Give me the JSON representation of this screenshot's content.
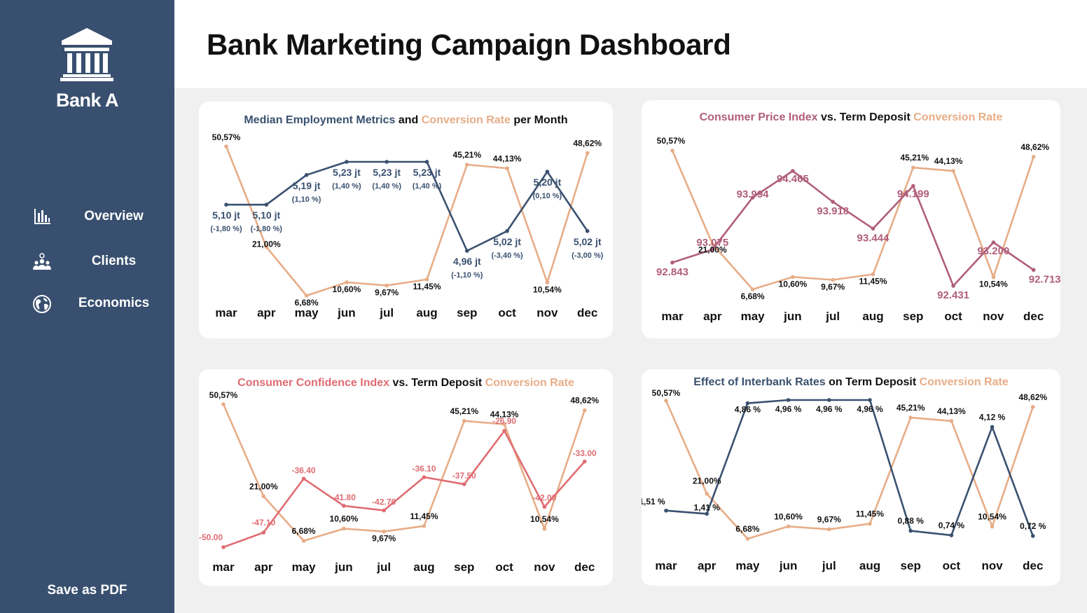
{
  "sidebar": {
    "bank_name": "Bank A",
    "logo_icon": "bank-building-icon",
    "nav": [
      {
        "label": "Overview",
        "icon": "bar-chart-icon"
      },
      {
        "label": "Clients",
        "icon": "people-icon"
      },
      {
        "label": "Economics",
        "icon": "globe-icon"
      }
    ],
    "save_label": "Save as PDF"
  },
  "header": {
    "title": "Bank Marketing Campaign Dashboard"
  },
  "colors": {
    "sidebar": "#384f6f",
    "navy": "#3a5170",
    "conversion": "#e7ad87",
    "cpi": "#b05e79",
    "cci": "#df6c72"
  },
  "chart_data": [
    {
      "type": "line",
      "title_parts": [
        {
          "text": "Median Employment Metrics",
          "color": "#3a5170"
        },
        {
          "text": " and ",
          "color": "#111111"
        },
        {
          "text": "Conversion Rate",
          "color": "#e7ad87"
        },
        {
          "text": " per Month",
          "color": "#111111"
        }
      ],
      "categories": [
        "mar",
        "apr",
        "may",
        "jun",
        "jul",
        "aug",
        "sep",
        "oct",
        "nov",
        "dec"
      ],
      "series": [
        {
          "role": "primary",
          "color": "#3a5170",
          "values": [
            5.1,
            5.1,
            5.19,
            5.23,
            5.23,
            5.23,
            4.96,
            5.02,
            5.2,
            5.02
          ],
          "labels": [
            "5,10 jt",
            "5,10 jt",
            "5,19 jt",
            "5,23 jt",
            "5,23 jt",
            "5,23 jt",
            "4,96 jt",
            "5,02 jt",
            "5,20 jt",
            "5,02 jt"
          ],
          "sublabels": [
            "(-1,80 %)",
            "(-1,80 %)",
            "(1,10 %)",
            "(1,40 %)",
            "(1,40 %)",
            "(1,40 %)",
            "(-1,10 %)",
            "(-3,40 %)",
            "(0,10 %)",
            "(-3,00 %)"
          ],
          "label_pos": [
            "below",
            "below",
            "above",
            "above",
            "above",
            "above",
            "below",
            "above",
            "above",
            "below"
          ]
        },
        {
          "role": "conversion",
          "color": "#e7ad87",
          "values": [
            50.57,
            21.0,
            6.68,
            10.6,
            9.67,
            11.45,
            45.21,
            44.13,
            10.54,
            48.62
          ],
          "labels": [
            "50,57%",
            "21,00%",
            "6,68%",
            "10,60%",
            "9,67%",
            "11,45%",
            "45,21%",
            "44,13%",
            "10,54%",
            "48,62%"
          ]
        }
      ]
    },
    {
      "type": "line",
      "title_parts": [
        {
          "text": "Consumer Price Index",
          "color": "#b05e79"
        },
        {
          "text": " vs. Term Deposit ",
          "color": "#111111"
        },
        {
          "text": "Conversion Rate",
          "color": "#e7ad87"
        }
      ],
      "categories": [
        "mar",
        "apr",
        "may",
        "jun",
        "jul",
        "aug",
        "sep",
        "oct",
        "nov",
        "dec"
      ],
      "series": [
        {
          "role": "primary",
          "color": "#b05e79",
          "values": [
            92.843,
            93.075,
            93.994,
            94.465,
            93.918,
            93.444,
            94.199,
            92.431,
            93.2,
            92.713
          ],
          "labels": [
            "92.843",
            "93.075",
            "93.994",
            "94.465",
            "93.918",
            "93.444",
            "94.199",
            "92.431",
            "93.200",
            "92.713"
          ]
        },
        {
          "role": "conversion",
          "color": "#e7ad87",
          "values": [
            50.57,
            21.0,
            6.68,
            10.6,
            9.67,
            11.45,
            45.21,
            44.13,
            10.54,
            48.62
          ],
          "labels": [
            "50,57%",
            "21,00%",
            "6,68%",
            "10,60%",
            "9,67%",
            "11,45%",
            "45,21%",
            "44,13%",
            "10,54%",
            "48,62%"
          ]
        }
      ]
    },
    {
      "type": "line",
      "title_parts": [
        {
          "text": "Consumer Confidence Index",
          "color": "#df6c72"
        },
        {
          "text": " vs. Term Deposit ",
          "color": "#111111"
        },
        {
          "text": "Conversion Rate",
          "color": "#e7ad87"
        }
      ],
      "categories": [
        "mar",
        "apr",
        "may",
        "jun",
        "jul",
        "aug",
        "sep",
        "oct",
        "nov",
        "dec"
      ],
      "series": [
        {
          "role": "primary",
          "color": "#df6c72",
          "values": [
            -50.0,
            -47.1,
            -36.4,
            -41.8,
            -42.7,
            -36.1,
            -37.5,
            -26.9,
            -42.0,
            -33.0
          ],
          "labels": [
            "-50.00",
            "-47.10",
            "-36.40",
            "-41.80",
            "-42.70",
            "-36.10",
            "-37.50",
            "-26.90",
            "-42.00",
            "-33.00"
          ]
        },
        {
          "role": "conversion",
          "color": "#e7ad87",
          "values": [
            50.57,
            21.0,
            6.68,
            10.6,
            9.67,
            11.45,
            45.21,
            44.13,
            10.54,
            48.62
          ],
          "labels": [
            "50,57%",
            "21,00%",
            "6,68%",
            "10,60%",
            "9,67%",
            "11,45%",
            "45,21%",
            "44,13%",
            "10,54%",
            "48,62%"
          ]
        }
      ]
    },
    {
      "type": "line",
      "title_parts": [
        {
          "text": "Effect of Interbank Rates",
          "color": "#3a5170"
        },
        {
          "text": " on Term Deposit ",
          "color": "#111111"
        },
        {
          "text": "Conversion Rate",
          "color": "#e7ad87"
        }
      ],
      "categories": [
        "mar",
        "apr",
        "may",
        "jun",
        "jul",
        "aug",
        "sep",
        "oct",
        "nov",
        "dec"
      ],
      "series": [
        {
          "role": "primary",
          "color": "#3a5170",
          "values": [
            1.51,
            1.41,
            4.86,
            4.96,
            4.96,
            4.96,
            0.88,
            0.74,
            4.12,
            0.72
          ],
          "labels": [
            "1,51 %",
            "1,41 %",
            "4,86 %",
            "4,96 %",
            "4,96 %",
            "4,96 %",
            "0,88 %",
            "0,74 %",
            "4,12 %",
            "0,72 %"
          ]
        },
        {
          "role": "conversion",
          "color": "#e7ad87",
          "values": [
            50.57,
            21.0,
            6.68,
            10.6,
            9.67,
            11.45,
            45.21,
            44.13,
            10.54,
            48.62
          ],
          "labels": [
            "50,57%",
            "21,00%",
            "6,68%",
            "10,60%",
            "9,67%",
            "11,45%",
            "45,21%",
            "44,13%",
            "10,54%",
            "48,62%"
          ]
        }
      ]
    }
  ]
}
